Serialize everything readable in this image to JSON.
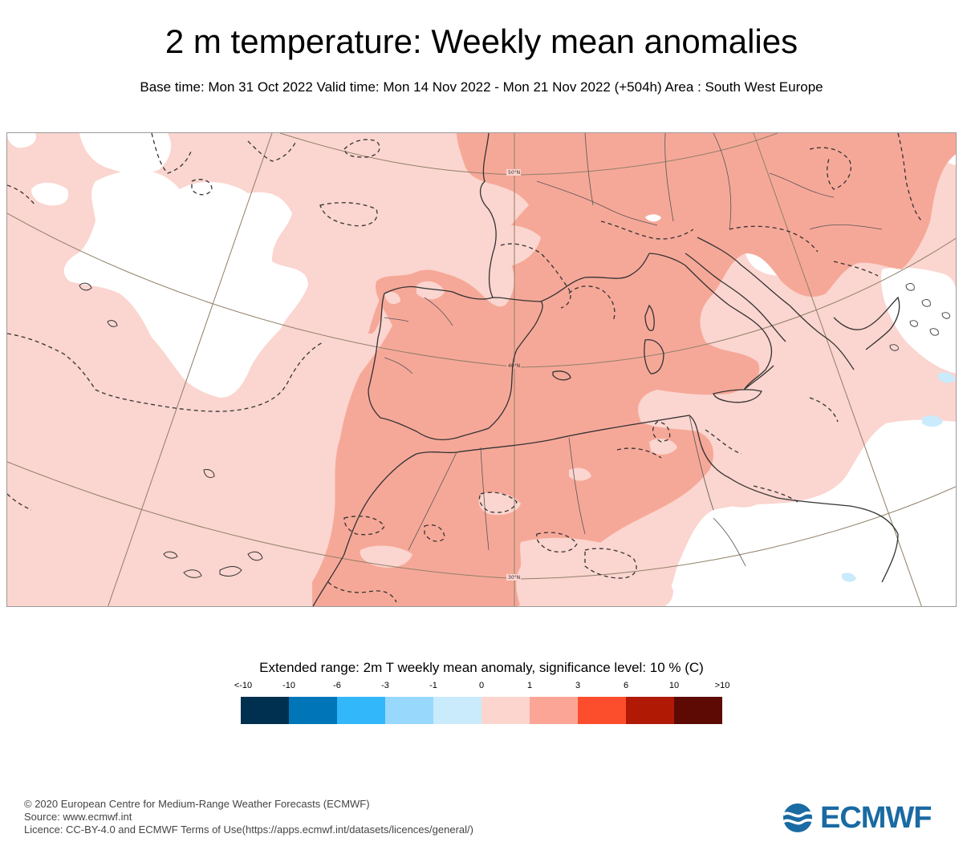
{
  "title": "2 m temperature: Weekly mean anomalies",
  "subtitle": "Base time: Mon 31 Oct 2022 Valid time: Mon 14 Nov 2022 - Mon 21 Nov 2022 (+504h) Area : South West Europe",
  "map": {
    "parallel_labels": [
      "50°N",
      "40°N",
      "30°N"
    ]
  },
  "legend": {
    "title": "Extended range: 2m T weekly mean anomaly, significance level: 10 % (C)",
    "ticks": [
      "<-10",
      "-10",
      "-6",
      "-3",
      "-1",
      "0",
      "1",
      "3",
      "6",
      "10",
      ">10"
    ],
    "colors": [
      "#00304f",
      "#0076b8",
      "#33b7fb",
      "#99d8fd",
      "#c9ebfc",
      "#fdd5cf",
      "#fba597",
      "#fc4e2d",
      "#b01a04",
      "#5c0a03"
    ]
  },
  "footer": {
    "line1": "© 2020 European Centre for Medium-Range Weather Forecasts (ECMWF)",
    "line2": "Source: www.ecmwf.int",
    "line3": "Licence: CC-BY-4.0 and ECMWF Terms of Use(https://apps.ecmwf.int/datasets/licences/general/)"
  },
  "logo": {
    "text": "ECMWF",
    "color": "#1a6aa3"
  }
}
